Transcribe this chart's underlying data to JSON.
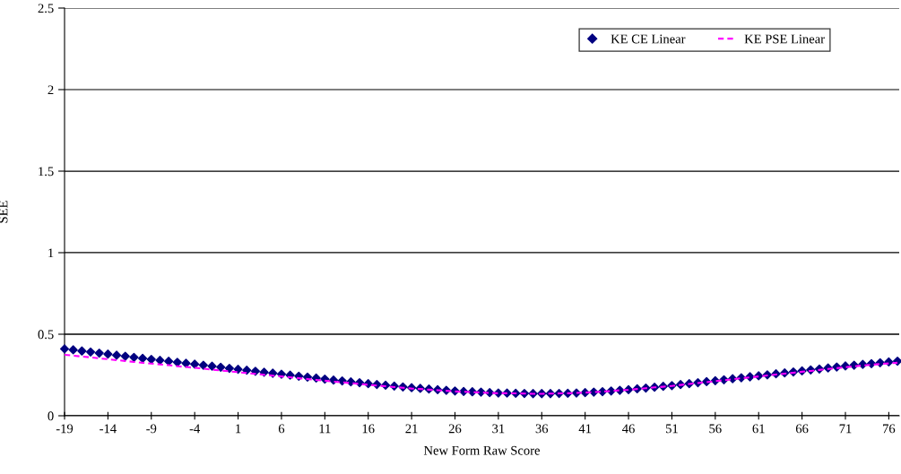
{
  "chart_data": {
    "type": "line",
    "xlabel": "New Form Raw Score",
    "ylabel": "SEE",
    "categories": [
      "-19",
      null,
      null,
      null,
      null,
      "-14",
      null,
      null,
      null,
      null,
      "-9",
      null,
      null,
      null,
      null,
      "-4",
      null,
      null,
      null,
      null,
      "1",
      null,
      null,
      null,
      null,
      "6",
      null,
      null,
      null,
      null,
      "11",
      null,
      null,
      null,
      null,
      "16",
      null,
      null,
      null,
      null,
      "21",
      null,
      null,
      null,
      null,
      "26",
      null,
      null,
      null,
      null,
      "31",
      null,
      null,
      null,
      null,
      "36",
      null,
      null,
      null,
      null,
      "41",
      null,
      null,
      null,
      null,
      "46",
      null,
      null,
      null,
      null,
      "51",
      null,
      null,
      null,
      null,
      "56",
      null,
      null,
      null,
      null,
      "61",
      null,
      null,
      null,
      null,
      "66",
      null,
      null,
      null,
      null,
      "71",
      null,
      null,
      null,
      null,
      "76",
      null
    ],
    "series": [
      {
        "name": "KE CE Linear",
        "type": "scatter",
        "color": "#000080",
        "marker": "diamond",
        "values": [
          0.41,
          0.404,
          0.397,
          0.391,
          0.384,
          0.378,
          0.371,
          0.365,
          0.358,
          0.352,
          0.346,
          0.34,
          0.334,
          0.328,
          0.322,
          0.316,
          0.31,
          0.304,
          0.298,
          0.291,
          0.285,
          0.279,
          0.273,
          0.267,
          0.261,
          0.255,
          0.249,
          0.243,
          0.237,
          0.231,
          0.225,
          0.219,
          0.214,
          0.208,
          0.203,
          0.197,
          0.192,
          0.187,
          0.182,
          0.177,
          0.172,
          0.168,
          0.164,
          0.16,
          0.156,
          0.152,
          0.149,
          0.147,
          0.145,
          0.142,
          0.14,
          0.139,
          0.138,
          0.137,
          0.136,
          0.136,
          0.136,
          0.137,
          0.138,
          0.14,
          0.142,
          0.145,
          0.148,
          0.152,
          0.156,
          0.16,
          0.165,
          0.17,
          0.175,
          0.18,
          0.185,
          0.191,
          0.197,
          0.203,
          0.209,
          0.215,
          0.221,
          0.227,
          0.233,
          0.239,
          0.245,
          0.251,
          0.257,
          0.263,
          0.269,
          0.275,
          0.281,
          0.287,
          0.293,
          0.299,
          0.305,
          0.31,
          0.315,
          0.32,
          0.325,
          0.33,
          0.335
        ]
      },
      {
        "name": "KE PSE Linear",
        "color": "#ff00ff",
        "marker": "none",
        "line_style": "dashed",
        "values": [
          0.374,
          0.369,
          0.363,
          0.358,
          0.352,
          0.347,
          0.341,
          0.336,
          0.33,
          0.325,
          0.32,
          0.315,
          0.31,
          0.304,
          0.299,
          0.294,
          0.289,
          0.283,
          0.278,
          0.272,
          0.267,
          0.262,
          0.257,
          0.251,
          0.246,
          0.241,
          0.236,
          0.23,
          0.225,
          0.22,
          0.215,
          0.209,
          0.205,
          0.2,
          0.195,
          0.19,
          0.185,
          0.181,
          0.176,
          0.172,
          0.167,
          0.164,
          0.16,
          0.157,
          0.153,
          0.149,
          0.147,
          0.145,
          0.143,
          0.14,
          0.138,
          0.138,
          0.137,
          0.136,
          0.135,
          0.135,
          0.136,
          0.137,
          0.138,
          0.14,
          0.142,
          0.145,
          0.148,
          0.152,
          0.156,
          0.159,
          0.164,
          0.169,
          0.174,
          0.178,
          0.183,
          0.189,
          0.195,
          0.201,
          0.206,
          0.212,
          0.218,
          0.224,
          0.23,
          0.235,
          0.241,
          0.247,
          0.253,
          0.258,
          0.264,
          0.27,
          0.275,
          0.281,
          0.287,
          0.292,
          0.298,
          0.303,
          0.308,
          0.313,
          0.317,
          0.321,
          0.325
        ]
      }
    ],
    "ylim": [
      0,
      2.5
    ],
    "yticks": [
      0,
      0.5,
      1,
      1.5,
      2,
      2.5
    ],
    "grid": "y",
    "legend": "top right"
  }
}
